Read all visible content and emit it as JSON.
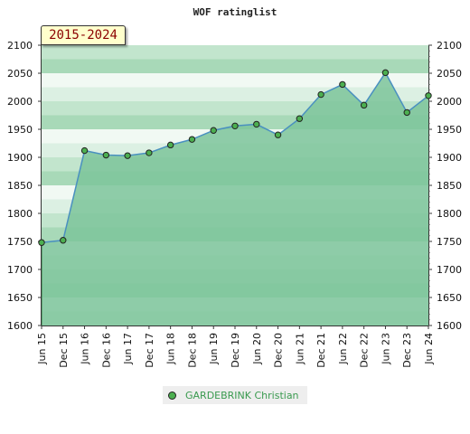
{
  "chart_data": {
    "type": "area",
    "title": "WOF ratinglist",
    "range_label": "2015-2024",
    "x_tick_labels": [
      "Jun 15",
      "Dec 15",
      "Jun 16",
      "Dec 16",
      "Jun 17",
      "Dec 17",
      "Jun 18",
      "Dec 18",
      "Jun 19",
      "Dec 19",
      "Jun 20",
      "Dec 20",
      "Jun 21",
      "Dec 21",
      "Jun 22",
      "Dec 22",
      "Jun 23",
      "Dec 23",
      "Jun 24"
    ],
    "y_ticks": [
      1600,
      1650,
      1700,
      1750,
      1800,
      1850,
      1900,
      1950,
      2000,
      2050,
      2100
    ],
    "ylim": [
      1600,
      2100
    ],
    "series": [
      {
        "name": "GARDEBRINK Christian",
        "values": [
          1748,
          1752,
          1912,
          1904,
          1903,
          1908,
          1922,
          1932,
          1948,
          1956,
          1959,
          1940,
          1969,
          2012,
          2030,
          1993,
          2051,
          1980,
          2010
        ]
      }
    ],
    "legend_position": "bottom-center",
    "colors": {
      "line": "#4a90c0",
      "fill": "#7dc49a",
      "marker": "#4caf50",
      "band_dark": "#a3d8b6",
      "band_light": "#f1f9f3"
    }
  }
}
